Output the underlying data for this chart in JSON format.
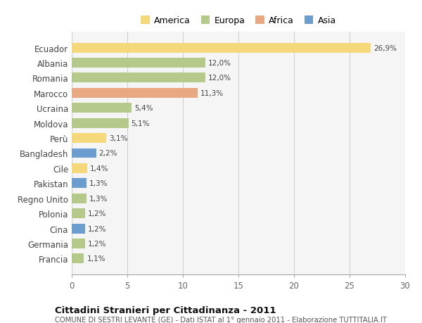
{
  "categories": [
    "Francia",
    "Germania",
    "Cina",
    "Polonia",
    "Regno Unito",
    "Pakistan",
    "Cile",
    "Bangladesh",
    "Perù",
    "Moldova",
    "Ucraina",
    "Marocco",
    "Romania",
    "Albania",
    "Ecuador"
  ],
  "values": [
    1.1,
    1.2,
    1.2,
    1.2,
    1.3,
    1.3,
    1.4,
    2.2,
    3.1,
    5.1,
    5.4,
    11.3,
    12.0,
    12.0,
    26.9
  ],
  "colors": [
    "#b5c98a",
    "#b5c98a",
    "#6b9ecf",
    "#b5c98a",
    "#b5c98a",
    "#6b9ecf",
    "#f5d87a",
    "#6b9ecf",
    "#f5d87a",
    "#b5c98a",
    "#b5c98a",
    "#e8a882",
    "#b5c98a",
    "#b5c98a",
    "#f5d87a"
  ],
  "labels": [
    "1,1%",
    "1,2%",
    "1,2%",
    "1,2%",
    "1,3%",
    "1,3%",
    "1,4%",
    "2,2%",
    "3,1%",
    "5,1%",
    "5,4%",
    "11,3%",
    "12,0%",
    "12,0%",
    "26,9%"
  ],
  "legend_labels": [
    "America",
    "Europa",
    "Africa",
    "Asia"
  ],
  "legend_colors": [
    "#f5d87a",
    "#b5c98a",
    "#e8a882",
    "#6b9ecf"
  ],
  "title": "Cittadini Stranieri per Cittadinanza - 2011",
  "subtitle": "COMUNE DI SESTRI LEVANTE (GE) - Dati ISTAT al 1° gennaio 2011 - Elaborazione TUTTITALIA.IT",
  "xlim": [
    0,
    30
  ],
  "xticks": [
    0,
    5,
    10,
    15,
    20,
    25,
    30
  ],
  "background_color": "#ffffff",
  "plot_bg_color": "#f5f5f5"
}
